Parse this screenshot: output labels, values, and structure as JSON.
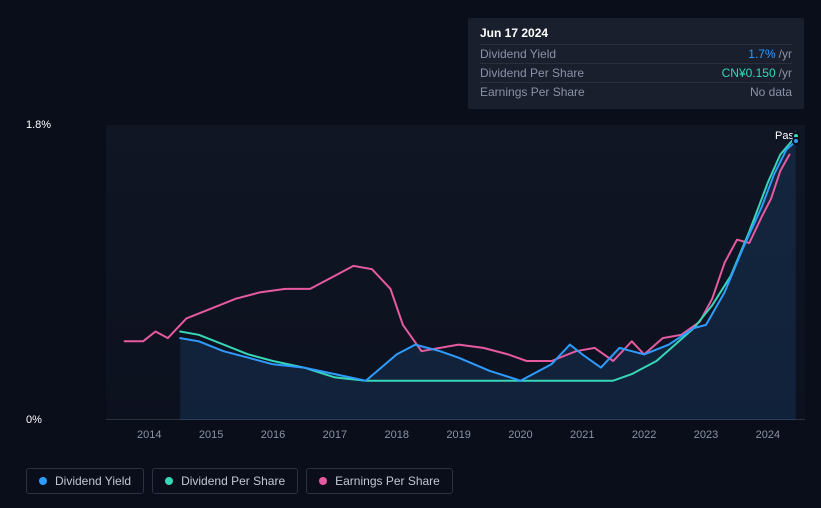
{
  "tooltip": {
    "date": "Jun 17 2024",
    "rows": [
      {
        "label": "Dividend Yield",
        "value": "1.7%",
        "unit": "/yr",
        "color": "#2f9bff"
      },
      {
        "label": "Dividend Per Share",
        "value": "CN¥0.150",
        "unit": "/yr",
        "color": "#36d6b7"
      },
      {
        "label": "Earnings Per Share",
        "value": "No data",
        "unit": "",
        "color": "#8a92a6"
      }
    ]
  },
  "chart": {
    "type": "line",
    "background_color": "#0a0e1a",
    "grid_color": "#2a3142",
    "ylim": [
      0,
      1.8
    ],
    "y_ticks": [
      {
        "v": 0,
        "label": "0%"
      },
      {
        "v": 1.8,
        "label": "1.8%"
      }
    ],
    "x_years": [
      2014,
      2015,
      2016,
      2017,
      2018,
      2019,
      2020,
      2021,
      2022,
      2023,
      2024
    ],
    "xlim": [
      2013.3,
      2024.6
    ],
    "past_label": "Past",
    "marker": {
      "x": 2024.45,
      "y_yield": 1.7,
      "y_dps": 1.73
    },
    "series": {
      "dividend_yield": {
        "color": "#2f9bff",
        "label": "Dividend Yield",
        "width": 2,
        "points": [
          [
            2014.5,
            0.5
          ],
          [
            2014.8,
            0.48
          ],
          [
            2015.2,
            0.42
          ],
          [
            2015.6,
            0.38
          ],
          [
            2016.0,
            0.34
          ],
          [
            2016.5,
            0.32
          ],
          [
            2017.0,
            0.28
          ],
          [
            2017.5,
            0.24
          ],
          [
            2018.0,
            0.4
          ],
          [
            2018.3,
            0.46
          ],
          [
            2018.7,
            0.42
          ],
          [
            2019.0,
            0.38
          ],
          [
            2019.5,
            0.3
          ],
          [
            2020.0,
            0.24
          ],
          [
            2020.5,
            0.34
          ],
          [
            2020.8,
            0.46
          ],
          [
            2021.0,
            0.4
          ],
          [
            2021.3,
            0.32
          ],
          [
            2021.6,
            0.44
          ],
          [
            2022.0,
            0.4
          ],
          [
            2022.4,
            0.46
          ],
          [
            2022.8,
            0.56
          ],
          [
            2023.0,
            0.58
          ],
          [
            2023.3,
            0.78
          ],
          [
            2023.6,
            1.05
          ],
          [
            2023.9,
            1.3
          ],
          [
            2024.1,
            1.5
          ],
          [
            2024.3,
            1.65
          ],
          [
            2024.45,
            1.7
          ]
        ]
      },
      "dividend_per_share": {
        "color": "#36d6b7",
        "label": "Dividend Per Share",
        "width": 2,
        "points": [
          [
            2014.5,
            0.54
          ],
          [
            2014.8,
            0.52
          ],
          [
            2015.2,
            0.46
          ],
          [
            2015.6,
            0.4
          ],
          [
            2016.0,
            0.36
          ],
          [
            2016.5,
            0.32
          ],
          [
            2017.0,
            0.26
          ],
          [
            2017.5,
            0.24
          ],
          [
            2018.0,
            0.24
          ],
          [
            2018.5,
            0.24
          ],
          [
            2019.0,
            0.24
          ],
          [
            2019.5,
            0.24
          ],
          [
            2020.0,
            0.24
          ],
          [
            2020.5,
            0.24
          ],
          [
            2021.0,
            0.24
          ],
          [
            2021.5,
            0.24
          ],
          [
            2021.8,
            0.28
          ],
          [
            2022.2,
            0.36
          ],
          [
            2022.5,
            0.46
          ],
          [
            2022.8,
            0.56
          ],
          [
            2023.1,
            0.7
          ],
          [
            2023.4,
            0.88
          ],
          [
            2023.7,
            1.15
          ],
          [
            2024.0,
            1.45
          ],
          [
            2024.2,
            1.62
          ],
          [
            2024.45,
            1.73
          ]
        ]
      },
      "earnings_per_share": {
        "color": "#e65aa0",
        "label": "Earnings Per Share",
        "width": 2,
        "points": [
          [
            2013.6,
            0.48
          ],
          [
            2013.9,
            0.48
          ],
          [
            2014.1,
            0.54
          ],
          [
            2014.3,
            0.5
          ],
          [
            2014.6,
            0.62
          ],
          [
            2015.0,
            0.68
          ],
          [
            2015.4,
            0.74
          ],
          [
            2015.8,
            0.78
          ],
          [
            2016.2,
            0.8
          ],
          [
            2016.6,
            0.8
          ],
          [
            2017.0,
            0.88
          ],
          [
            2017.3,
            0.94
          ],
          [
            2017.6,
            0.92
          ],
          [
            2017.9,
            0.8
          ],
          [
            2018.1,
            0.58
          ],
          [
            2018.4,
            0.42
          ],
          [
            2018.7,
            0.44
          ],
          [
            2019.0,
            0.46
          ],
          [
            2019.4,
            0.44
          ],
          [
            2019.8,
            0.4
          ],
          [
            2020.1,
            0.36
          ],
          [
            2020.5,
            0.36
          ],
          [
            2020.9,
            0.42
          ],
          [
            2021.2,
            0.44
          ],
          [
            2021.5,
            0.36
          ],
          [
            2021.8,
            0.48
          ],
          [
            2022.0,
            0.4
          ],
          [
            2022.3,
            0.5
          ],
          [
            2022.6,
            0.52
          ],
          [
            2022.9,
            0.6
          ],
          [
            2023.1,
            0.74
          ],
          [
            2023.3,
            0.96
          ],
          [
            2023.5,
            1.1
          ],
          [
            2023.7,
            1.08
          ],
          [
            2023.9,
            1.24
          ],
          [
            2024.05,
            1.35
          ],
          [
            2024.2,
            1.52
          ],
          [
            2024.35,
            1.62
          ]
        ]
      }
    }
  },
  "legend": [
    {
      "key": "dividend_yield",
      "label": "Dividend Yield",
      "color": "#2f9bff"
    },
    {
      "key": "dividend_per_share",
      "label": "Dividend Per Share",
      "color": "#36d6b7"
    },
    {
      "key": "earnings_per_share",
      "label": "Earnings Per Share",
      "color": "#e65aa0"
    }
  ]
}
